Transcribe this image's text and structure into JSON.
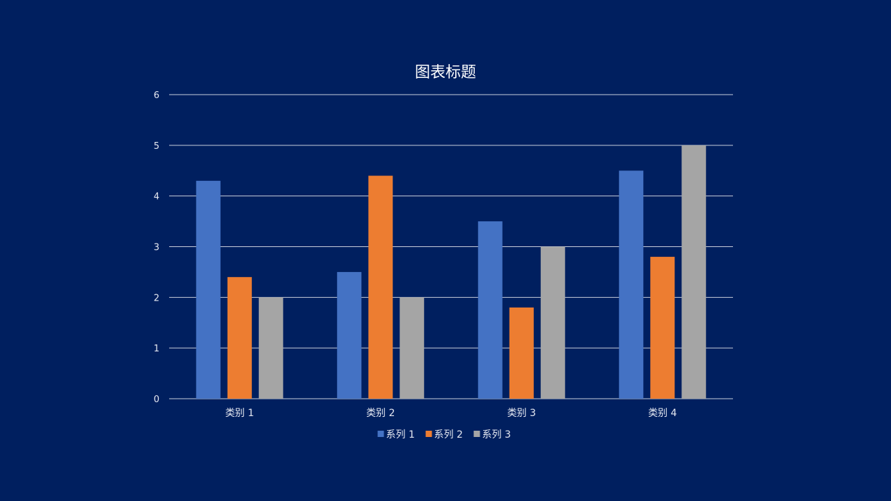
{
  "background_color": "#001f5f",
  "chart_data": {
    "type": "bar",
    "title": "图表标题",
    "categories": [
      "类别 1",
      "类别 2",
      "类别 3",
      "类别 4"
    ],
    "series": [
      {
        "name": "系列 1",
        "color": "#4472c4",
        "values": [
          4.3,
          2.5,
          3.5,
          4.5
        ]
      },
      {
        "name": "系列 2",
        "color": "#ed7d31",
        "values": [
          2.4,
          4.4,
          1.8,
          2.8
        ]
      },
      {
        "name": "系列 3",
        "color": "#a5a5a5",
        "values": [
          2.0,
          2.0,
          3.0,
          5.0
        ]
      }
    ],
    "ylim": [
      0,
      6
    ],
    "yticks": [
      "0",
      "1",
      "2",
      "3",
      "4",
      "5",
      "6"
    ],
    "xlabel": "",
    "ylabel": "",
    "grid": true,
    "legend_position": "bottom"
  }
}
